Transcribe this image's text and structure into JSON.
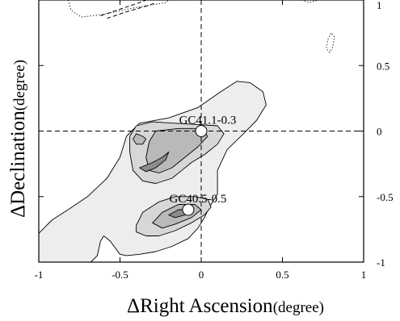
{
  "chart_data": {
    "type": "contour",
    "xlabel": "ΔRight Ascension",
    "xlabel_unit": "(degree)",
    "ylabel": "ΔDeclination",
    "ylabel_unit": "(degree)",
    "xlim": [
      -1,
      1
    ],
    "ylim": [
      -1,
      1
    ],
    "x_reversed": false,
    "x_ticks": [
      "-1",
      "-0.5",
      "0",
      "0.5",
      "1"
    ],
    "y_ticks": [
      "1",
      "0.5",
      "0",
      "-0.5",
      "-1"
    ],
    "y_tick_side": "right",
    "crosshair": {
      "x": 0,
      "y": 0,
      "style": "dashed"
    },
    "sources": [
      {
        "name": "GC41.1-0.3",
        "x": 0.0,
        "y": 0.0
      },
      {
        "name": "GC40.5-0.5",
        "x": -0.08,
        "y": -0.6
      }
    ],
    "contour_levels": [
      {
        "level": 1,
        "fill": "#ededed",
        "paths": [
          [
            [
              -1,
              -0.78
            ],
            [
              -0.92,
              -0.68
            ],
            [
              -0.82,
              -0.6
            ],
            [
              -0.7,
              -0.5
            ],
            [
              -0.58,
              -0.36
            ],
            [
              -0.5,
              -0.2
            ],
            [
              -0.46,
              -0.04
            ],
            [
              -0.38,
              0.06
            ],
            [
              -0.2,
              0.1
            ],
            [
              -0.02,
              0.18
            ],
            [
              0.12,
              0.3
            ],
            [
              0.22,
              0.38
            ],
            [
              0.3,
              0.37
            ],
            [
              0.38,
              0.3
            ],
            [
              0.4,
              0.2
            ],
            [
              0.34,
              0.08
            ],
            [
              0.26,
              -0.02
            ],
            [
              0.16,
              -0.14
            ],
            [
              0.1,
              -0.3
            ],
            [
              0.1,
              -0.48
            ],
            [
              0.05,
              -0.58
            ],
            [
              0.02,
              -0.66
            ],
            [
              -0.02,
              -0.74
            ],
            [
              -0.08,
              -0.82
            ],
            [
              -0.18,
              -0.88
            ],
            [
              -0.28,
              -0.92
            ],
            [
              -0.38,
              -0.94
            ],
            [
              -0.46,
              -0.95
            ],
            [
              -0.5,
              -0.94
            ],
            [
              -0.56,
              -0.84
            ],
            [
              -0.6,
              -0.8
            ],
            [
              -0.62,
              -0.84
            ],
            [
              -0.64,
              -0.95
            ],
            [
              -0.68,
              -1
            ],
            [
              -1,
              -1
            ]
          ]
        ]
      },
      {
        "level": 2,
        "fill": "#d7d7d7",
        "paths": [
          [
            [
              -0.4,
              0.04
            ],
            [
              -0.3,
              0.07
            ],
            [
              -0.16,
              0.06
            ],
            [
              -0.02,
              0.05
            ],
            [
              0.1,
              0.04
            ],
            [
              0.14,
              -0.02
            ],
            [
              0.1,
              -0.1
            ],
            [
              0.02,
              -0.18
            ],
            [
              -0.06,
              -0.24
            ],
            [
              -0.12,
              -0.3
            ],
            [
              -0.18,
              -0.36
            ],
            [
              -0.28,
              -0.4
            ],
            [
              -0.36,
              -0.38
            ],
            [
              -0.42,
              -0.3
            ],
            [
              -0.44,
              -0.16
            ],
            [
              -0.44,
              -0.04
            ]
          ],
          [
            [
              -0.4,
              -0.72
            ],
            [
              -0.36,
              -0.62
            ],
            [
              -0.26,
              -0.54
            ],
            [
              -0.16,
              -0.5
            ],
            [
              -0.04,
              -0.5
            ],
            [
              0.04,
              -0.52
            ],
            [
              0.06,
              -0.58
            ],
            [
              0.02,
              -0.64
            ],
            [
              -0.06,
              -0.7
            ],
            [
              -0.16,
              -0.76
            ],
            [
              -0.26,
              -0.8
            ],
            [
              -0.34,
              -0.8
            ],
            [
              -0.4,
              -0.77
            ]
          ]
        ]
      },
      {
        "level": 3,
        "fill": "#b9b9b9",
        "paths": [
          [
            [
              -0.28,
              0.0
            ],
            [
              -0.14,
              0.02
            ],
            [
              0.0,
              0.02
            ],
            [
              0.04,
              -0.04
            ],
            [
              -0.02,
              -0.12
            ],
            [
              -0.1,
              -0.2
            ],
            [
              -0.18,
              -0.28
            ],
            [
              -0.26,
              -0.32
            ],
            [
              -0.32,
              -0.3
            ],
            [
              -0.34,
              -0.2
            ],
            [
              -0.32,
              -0.08
            ]
          ],
          [
            [
              -0.3,
              -0.7
            ],
            [
              -0.24,
              -0.62
            ],
            [
              -0.14,
              -0.56
            ],
            [
              -0.04,
              -0.56
            ],
            [
              0.0,
              -0.6
            ],
            [
              -0.06,
              -0.66
            ],
            [
              -0.16,
              -0.71
            ],
            [
              -0.24,
              -0.74
            ]
          ],
          [
            [
              -0.4,
              -0.02
            ],
            [
              -0.36,
              -0.04
            ],
            [
              -0.34,
              -0.06
            ],
            [
              -0.36,
              -0.1
            ],
            [
              -0.4,
              -0.1
            ],
            [
              -0.42,
              -0.06
            ]
          ]
        ]
      },
      {
        "level": 4,
        "fill": "#8c8c8c",
        "paths": [
          [
            [
              -0.38,
              -0.28
            ],
            [
              -0.3,
              -0.24
            ],
            [
              -0.24,
              -0.2
            ],
            [
              -0.2,
              -0.16
            ],
            [
              -0.22,
              -0.22
            ],
            [
              -0.28,
              -0.28
            ],
            [
              -0.34,
              -0.31
            ]
          ],
          [
            [
              -0.2,
              -0.64
            ],
            [
              -0.14,
              -0.6
            ],
            [
              -0.08,
              -0.6
            ],
            [
              -0.1,
              -0.64
            ],
            [
              -0.16,
              -0.66
            ]
          ]
        ]
      }
    ],
    "negative_contours_dotted": [
      [
        [
          -0.82,
          1.0
        ],
        [
          -0.8,
          0.92
        ],
        [
          -0.74,
          0.87
        ],
        [
          -0.6,
          0.89
        ],
        [
          -0.46,
          0.93
        ],
        [
          -0.32,
          0.96
        ],
        [
          -0.22,
          0.98
        ],
        [
          -0.2,
          1.0
        ]
      ],
      [
        [
          0.78,
          0.7
        ],
        [
          0.8,
          0.75
        ],
        [
          0.82,
          0.72
        ],
        [
          0.81,
          0.64
        ],
        [
          0.79,
          0.6
        ],
        [
          0.77,
          0.63
        ],
        [
          0.78,
          0.7
        ]
      ],
      [
        [
          0.62,
          1.0
        ],
        [
          0.66,
          0.98
        ],
        [
          0.72,
          1.0
        ]
      ]
    ],
    "negative_contours_dashed": [
      [
        [
          -0.62,
          0.88
        ],
        [
          -0.5,
          0.93
        ],
        [
          -0.38,
          0.98
        ],
        [
          -0.34,
          1.0
        ]
      ],
      [
        [
          -0.58,
          0.86
        ],
        [
          -0.46,
          0.91
        ],
        [
          -0.32,
          0.96
        ],
        [
          -0.28,
          0.98
        ]
      ]
    ],
    "grid": false
  }
}
